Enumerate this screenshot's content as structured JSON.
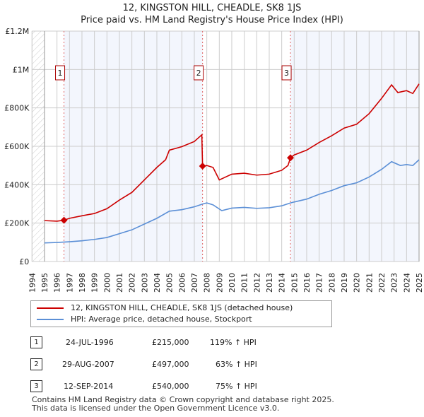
{
  "chart_data": {
    "type": "line",
    "title": "12, KINGSTON HILL, CHEADLE, SK8 1JS",
    "subtitle": "Price paid vs. HM Land Registry's House Price Index (HPI)",
    "xlim": [
      1994,
      2025
    ],
    "ylim": [
      0,
      1200000
    ],
    "y_ticks": [
      {
        "v": 0,
        "label": "£0"
      },
      {
        "v": 200000,
        "label": "£200K"
      },
      {
        "v": 400000,
        "label": "£400K"
      },
      {
        "v": 600000,
        "label": "£600K"
      },
      {
        "v": 800000,
        "label": "£800K"
      },
      {
        "v": 1000000,
        "label": "£1M"
      },
      {
        "v": 1200000,
        "label": "£1.2M"
      }
    ],
    "x_ticks": [
      "1994",
      "1995",
      "1996",
      "1997",
      "1998",
      "1999",
      "2000",
      "2001",
      "2002",
      "2003",
      "2004",
      "2005",
      "2006",
      "2007",
      "2008",
      "2009",
      "2010",
      "2011",
      "2012",
      "2013",
      "2014",
      "2015",
      "2016",
      "2017",
      "2018",
      "2019",
      "2020",
      "2021",
      "2022",
      "2023",
      "2024",
      "2025"
    ],
    "grid": true,
    "series": [
      {
        "name": "12, KINGSTON HILL, CHEADLE, SK8 1JS (detached house)",
        "color": "#cc0000",
        "x": [
          1995,
          1996,
          1996.56,
          1997,
          1998,
          1999,
          2000,
          2001,
          2002,
          2003,
          2004,
          2004.7,
          2005,
          2006,
          2007,
          2007.6,
          2007.66,
          2008,
          2008.5,
          2009,
          2010,
          2011,
          2012,
          2013,
          2014,
          2014.5,
          2014.7,
          2015,
          2016,
          2017,
          2018,
          2019,
          2020,
          2021,
          2022,
          2022.8,
          2023.3,
          2024,
          2024.5,
          2025
        ],
        "y": [
          213000,
          210000,
          215000,
          225000,
          238000,
          250000,
          275000,
          320000,
          360000,
          425000,
          490000,
          530000,
          580000,
          598000,
          625000,
          660000,
          497000,
          500000,
          490000,
          425000,
          455000,
          460000,
          450000,
          455000,
          475000,
          500000,
          540000,
          555000,
          580000,
          620000,
          655000,
          695000,
          715000,
          770000,
          850000,
          920000,
          880000,
          890000,
          875000,
          925000
        ]
      },
      {
        "name": "HPI: Average price, detached house, Stockport",
        "color": "#5b8fd6",
        "x": [
          1995,
          1996,
          1997,
          1998,
          1999,
          2000,
          2001,
          2002,
          2003,
          2004,
          2005,
          2006,
          2007,
          2007.7,
          2008,
          2008.5,
          2009.2,
          2010,
          2011,
          2012,
          2013,
          2014,
          2014.7,
          2015,
          2016,
          2017,
          2018,
          2019,
          2020,
          2021,
          2022,
          2022.8,
          2023.5,
          2024,
          2024.5,
          2025
        ],
        "y": [
          97000,
          99000,
          103000,
          108000,
          115000,
          125000,
          145000,
          165000,
          195000,
          225000,
          262000,
          270000,
          285000,
          300000,
          305000,
          295000,
          265000,
          278000,
          282000,
          277000,
          280000,
          290000,
          305000,
          310000,
          325000,
          350000,
          370000,
          395000,
          410000,
          440000,
          480000,
          520000,
          500000,
          505000,
          500000,
          530000
        ]
      }
    ],
    "sales": [
      {
        "label": "1",
        "date": "24-JUL-1996",
        "x": 1996.56,
        "price_value": 215000,
        "price": "£215,000",
        "hpi": "119% ↑ HPI"
      },
      {
        "label": "2",
        "date": "29-AUG-2007",
        "x": 2007.66,
        "price_value": 497000,
        "price": "£497,000",
        "hpi": "63% ↑ HPI"
      },
      {
        "label": "3",
        "date": "12-SEP-2014",
        "x": 2014.7,
        "price_value": 540000,
        "price": "£540,000",
        "hpi": "75% ↑ HPI"
      }
    ],
    "legend_position": "bottom"
  },
  "footer": {
    "line1": "Contains HM Land Registry data © Crown copyright and database right 2025.",
    "line2": "This data is licensed under the Open Government Licence v3.0."
  }
}
